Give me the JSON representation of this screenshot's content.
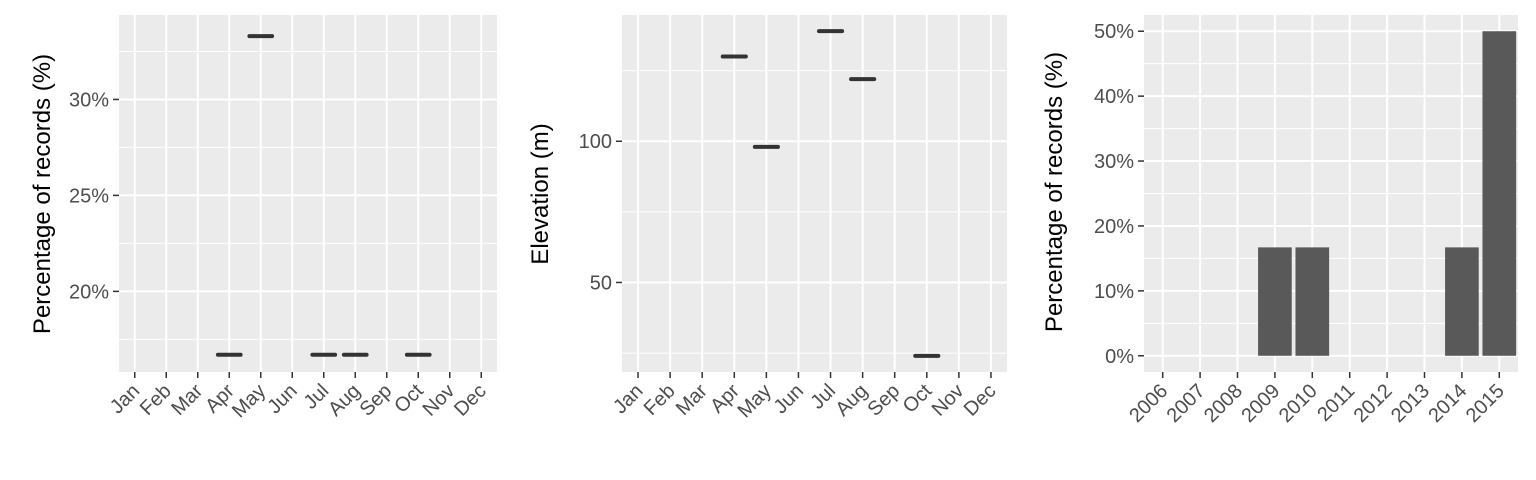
{
  "chart_data": [
    {
      "type": "segment",
      "title": "",
      "xlabel": "",
      "ylabel": "Percentage of records (%)",
      "categories": [
        "Jan",
        "Feb",
        "Mar",
        "Apr",
        "May",
        "Jun",
        "Jul",
        "Aug",
        "Sep",
        "Oct",
        "Nov",
        "Dec"
      ],
      "values": [
        null,
        null,
        null,
        16.7,
        33.3,
        null,
        16.7,
        16.7,
        null,
        16.7,
        null,
        null
      ],
      "ylim": [
        15.8,
        34.4
      ],
      "yticks": [
        20,
        25,
        30
      ],
      "ytick_labels": [
        "20%",
        "25%",
        "30%"
      ],
      "grid": true
    },
    {
      "type": "segment",
      "title": "",
      "xlabel": "",
      "ylabel": "Elevation (m)",
      "categories": [
        "Jan",
        "Feb",
        "Mar",
        "Apr",
        "May",
        "Jun",
        "Jul",
        "Aug",
        "Sep",
        "Oct",
        "Nov",
        "Dec"
      ],
      "values": [
        null,
        null,
        null,
        130,
        98,
        null,
        139,
        122,
        null,
        24,
        null,
        null
      ],
      "ylim": [
        18.3,
        144.7
      ],
      "yticks": [
        50,
        100
      ],
      "ytick_labels": [
        "50",
        "100"
      ],
      "grid": true
    },
    {
      "type": "bar",
      "title": "",
      "xlabel": "",
      "ylabel": "Percentage of records (%)",
      "categories": [
        "2006",
        "2007",
        "2008",
        "2009",
        "2010",
        "2011",
        "2012",
        "2013",
        "2014",
        "2015"
      ],
      "values": [
        0,
        0,
        0,
        16.7,
        16.7,
        0,
        0,
        0,
        16.7,
        50
      ],
      "ylim": [
        -2.5,
        52.5
      ],
      "yticks": [
        0,
        10,
        20,
        30,
        40,
        50
      ],
      "ytick_labels": [
        "0%",
        "10%",
        "20%",
        "30%",
        "40%",
        "50%"
      ],
      "grid": true
    }
  ]
}
